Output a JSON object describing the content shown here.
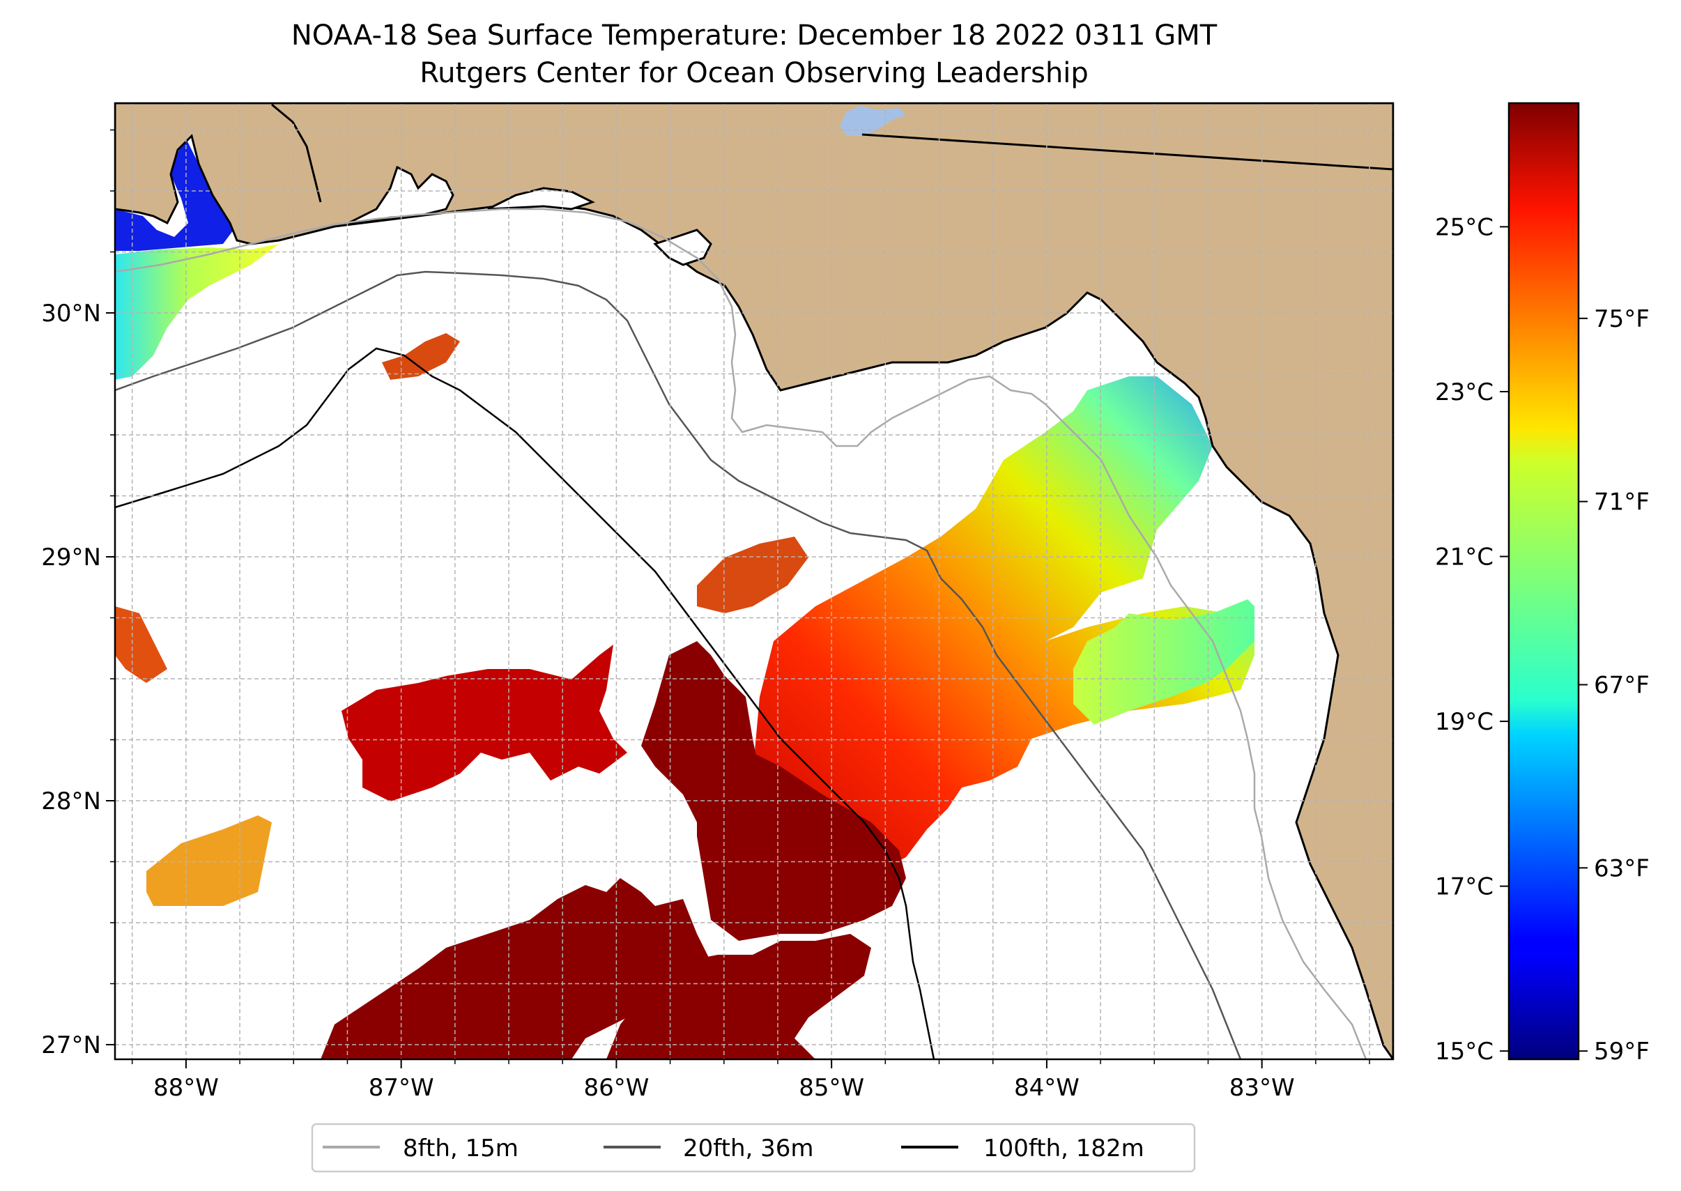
{
  "title": {
    "line1": "NOAA-18 Sea Surface Temperature: December 18 2022 0311 GMT",
    "line2": "Rutgers Center for Ocean Observing Leadership"
  },
  "map": {
    "lon_range": [
      -88.33,
      -82.39
    ],
    "lat_range": [
      26.94,
      30.86
    ],
    "land_color": "#d2b48c",
    "lake_color": "#a4c0e6",
    "gridlines": true,
    "lon_ticks": [
      {
        "value": -88,
        "label": "88°W"
      },
      {
        "value": -87,
        "label": "87°W"
      },
      {
        "value": -86,
        "label": "86°W"
      },
      {
        "value": -85,
        "label": "85°W"
      },
      {
        "value": -84,
        "label": "84°W"
      },
      {
        "value": -83,
        "label": "83°W"
      }
    ],
    "lat_ticks": [
      {
        "value": 30,
        "label": "30°N"
      },
      {
        "value": 29,
        "label": "29°N"
      },
      {
        "value": 28,
        "label": "28°N"
      },
      {
        "value": 27,
        "label": "27°N"
      }
    ]
  },
  "colorbar": {
    "colormap": "jet",
    "c_range": [
      14.9,
      26.5
    ],
    "celsius_ticks": [
      {
        "value": 25,
        "label": "25°C"
      },
      {
        "value": 23,
        "label": "23°C"
      },
      {
        "value": 21,
        "label": "21°C"
      },
      {
        "value": 19,
        "label": "19°C"
      },
      {
        "value": 17,
        "label": "17°C"
      },
      {
        "value": 15,
        "label": "15°C"
      }
    ],
    "fahrenheit_ticks": [
      {
        "value": 75,
        "label": "75°F"
      },
      {
        "value": 71,
        "label": "71°F"
      },
      {
        "value": 67,
        "label": "67°F"
      },
      {
        "value": 63,
        "label": "63°F"
      },
      {
        "value": 59,
        "label": "59°F"
      }
    ]
  },
  "legend": {
    "placement": "bottom-center",
    "items": [
      {
        "label": "8fth, 15m",
        "color": "#a9a9a9"
      },
      {
        "label": "20fth, 36m",
        "color": "#555555"
      },
      {
        "label": "100fth, 182m",
        "color": "#000000"
      }
    ]
  }
}
